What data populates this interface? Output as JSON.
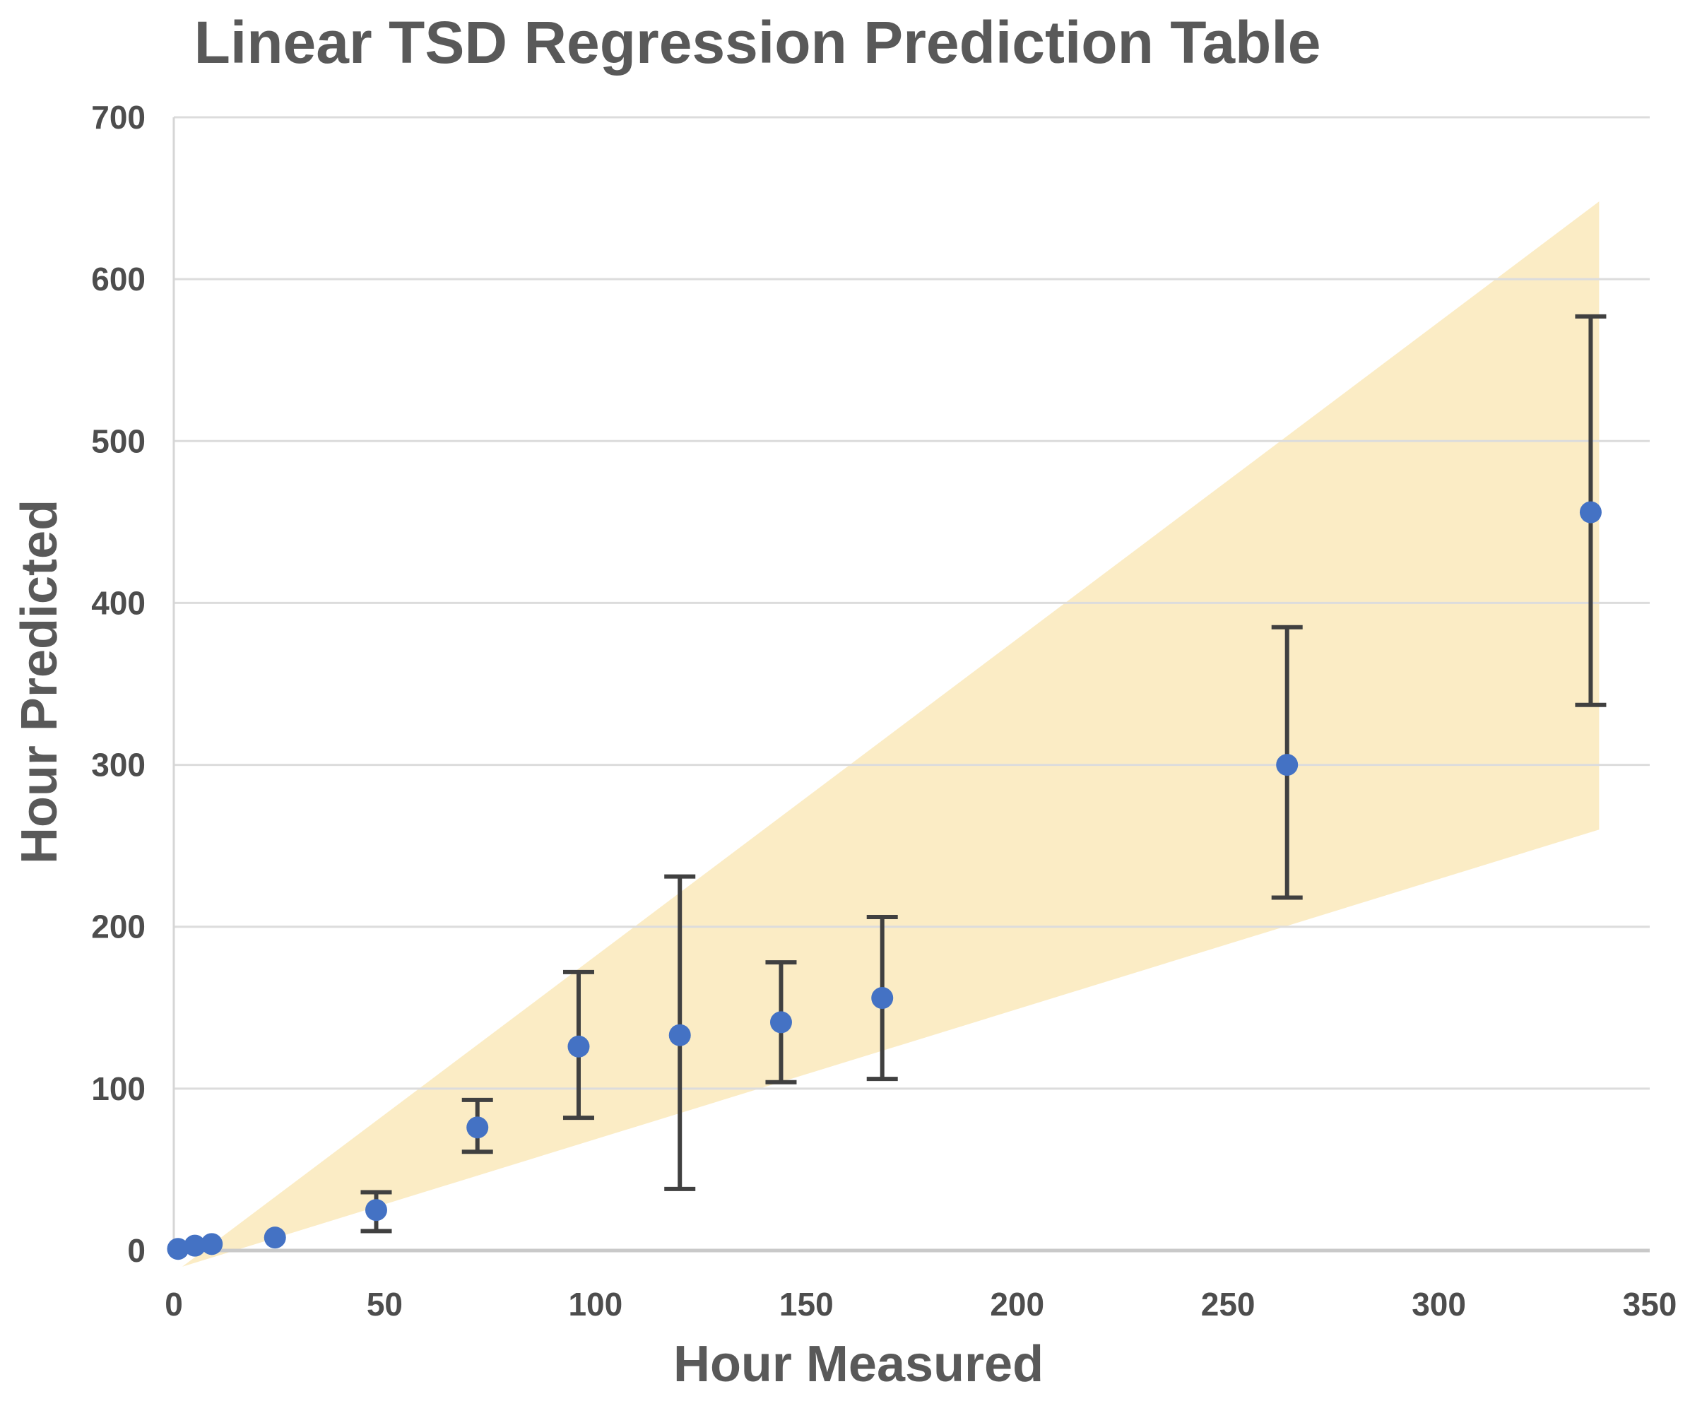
{
  "chart_data": {
    "type": "scatter",
    "title": "Linear TSD Regression Prediction Table",
    "xlabel": "Hour Measured",
    "ylabel": "Hour Predicted",
    "xlim": [
      0,
      350
    ],
    "ylim": [
      0,
      700
    ],
    "x_ticks": [
      0,
      50,
      100,
      150,
      200,
      250,
      300,
      350
    ],
    "y_ticks": [
      0,
      100,
      200,
      300,
      400,
      500,
      600,
      700
    ],
    "grid": "horizontal-only",
    "legend": "none",
    "series": [
      {
        "name": "prediction-points",
        "marker": "circle",
        "points": [
          {
            "x": 1,
            "y": 1,
            "err_lo": null,
            "err_hi": null
          },
          {
            "x": 5,
            "y": 3,
            "err_lo": null,
            "err_hi": null
          },
          {
            "x": 9,
            "y": 4,
            "err_lo": null,
            "err_hi": null
          },
          {
            "x": 24,
            "y": 8,
            "err_lo": null,
            "err_hi": null
          },
          {
            "x": 48,
            "y": 25,
            "err_lo": 12,
            "err_hi": 36
          },
          {
            "x": 72,
            "y": 76,
            "err_lo": 61,
            "err_hi": 93
          },
          {
            "x": 96,
            "y": 126,
            "err_lo": 82,
            "err_hi": 172
          },
          {
            "x": 120,
            "y": 133,
            "err_lo": 38,
            "err_hi": 231
          },
          {
            "x": 144,
            "y": 141,
            "err_lo": 104,
            "err_hi": 178
          },
          {
            "x": 168,
            "y": 156,
            "err_lo": 106,
            "err_hi": 206
          },
          {
            "x": 264,
            "y": 300,
            "err_lo": 218,
            "err_hi": 385
          },
          {
            "x": 336,
            "y": 456,
            "err_lo": 337,
            "err_hi": 577
          }
        ]
      }
    ],
    "band": {
      "name": "prediction-interval-fan",
      "vertices_xy": [
        [
          2,
          -10
        ],
        [
          338,
          648
        ],
        [
          338,
          260
        ]
      ],
      "color": "#FBECC5"
    },
    "colors": {
      "marker": "#4472C4",
      "error_bar": "#404040",
      "gridline": "#DCDCDC",
      "axis_line": "#C9C9C9",
      "title_text": "#595959",
      "tick_text": "#4D4D4D"
    }
  }
}
